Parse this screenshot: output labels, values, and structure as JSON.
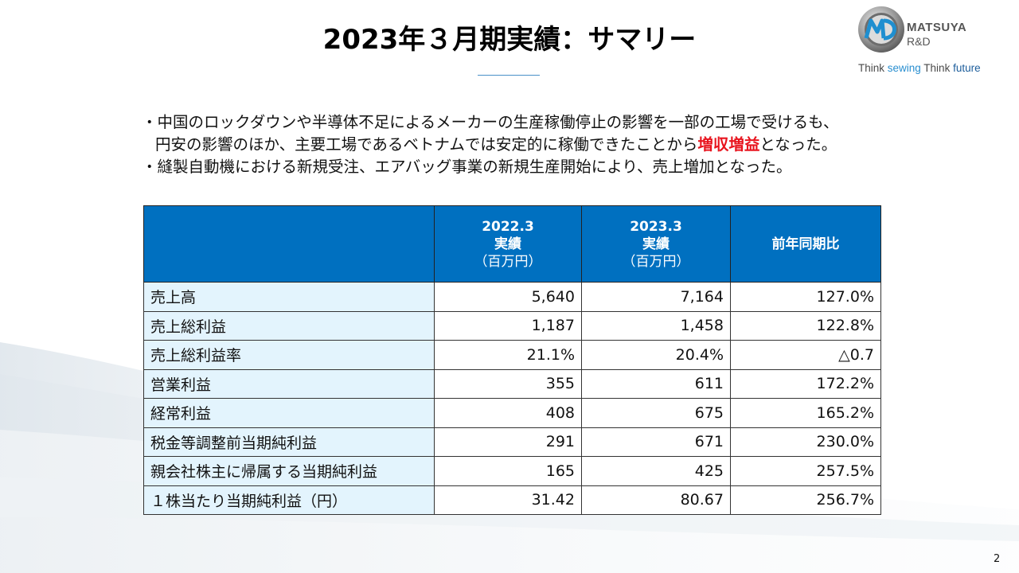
{
  "slide": {
    "title": "2023年３月期実績：サマリー",
    "page_number": "2"
  },
  "logo": {
    "mark_text": "MRD",
    "company": "MATSUYA",
    "division": "R&D",
    "tagline_parts": [
      "Think ",
      "sewing",
      " Think ",
      "future"
    ]
  },
  "bullets": {
    "line1": "・中国のロックダウンや半導体不足によるメーカーの生産稼働停止の影響を一部の工場で受けるも、",
    "line2_before": "円安の影響のほか、主要工場であるベトナムでは安定的に稼働できたことから",
    "line2_highlight": "増収増益",
    "line2_after": "となった。",
    "line3": "・縫製自動機における新規受注、エアバッグ事業の新規生産開始により、売上増加となった。"
  },
  "table": {
    "headers": [
      {
        "l1": "",
        "l2": "",
        "l3": ""
      },
      {
        "l1": "2022.3",
        "l2": "実績",
        "l3": "（百万円）"
      },
      {
        "l1": "2023.3",
        "l2": "実績",
        "l3": "（百万円）"
      },
      {
        "l1": "前年同期比",
        "l2": "",
        "l3": ""
      }
    ],
    "rows": [
      {
        "label": "売上高",
        "fy2022": "5,640",
        "fy2023": "7,164",
        "yoy": "127.0%"
      },
      {
        "label": "売上総利益",
        "fy2022": "1,187",
        "fy2023": "1,458",
        "yoy": "122.8%"
      },
      {
        "label": "売上総利益率",
        "fy2022": "21.1%",
        "fy2023": "20.4%",
        "yoy": "△0.7"
      },
      {
        "label": "営業利益",
        "fy2022": "355",
        "fy2023": "611",
        "yoy": "172.2%"
      },
      {
        "label": "経常利益",
        "fy2022": "408",
        "fy2023": "675",
        "yoy": "165.2%"
      },
      {
        "label": "税金等調整前当期純利益",
        "fy2022": "291",
        "fy2023": "671",
        "yoy": "230.0%"
      },
      {
        "label": "親会社株主に帰属する当期純利益",
        "fy2022": "165",
        "fy2023": "425",
        "yoy": "257.5%"
      },
      {
        "label": "１株当たり当期純利益（円）",
        "fy2022": "31.42",
        "fy2023": "80.67",
        "yoy": "256.7%"
      }
    ]
  },
  "colors": {
    "header_blue": "#0070c0",
    "label_bg": "#e3f4fd",
    "highlight_red": "#e8141e",
    "logo_blue": "#2a8fd0"
  }
}
